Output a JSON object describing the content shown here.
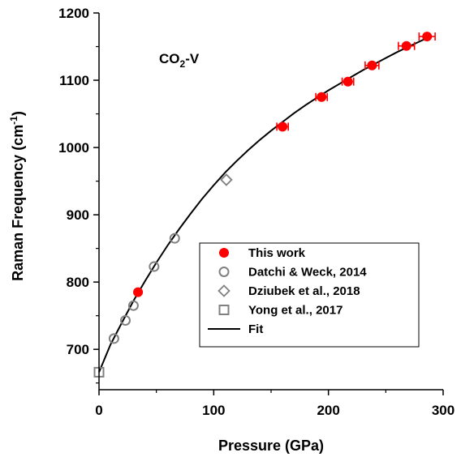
{
  "chart_data": {
    "type": "scatter",
    "xlabel": "Pressure (GPa)",
    "ylabel_main": "Raman Frequency (cm",
    "ylabel_sup": "-1",
    "ylabel_end": ")",
    "xlim": [
      0,
      300
    ],
    "ylim": [
      640,
      1200
    ],
    "xticks": [
      0,
      100,
      200,
      300
    ],
    "yticks": [
      700,
      800,
      900,
      1000,
      1100,
      1200
    ],
    "grid": false,
    "legend_position": "bottom-right",
    "annotation": {
      "main": "CO",
      "sub": "2",
      "end": "-V"
    },
    "series": [
      {
        "name": "This work",
        "marker": "filled-circle",
        "color": "#ff0000",
        "points": [
          {
            "x": 34,
            "y": 785,
            "xerr": 0
          },
          {
            "x": 160,
            "y": 1031,
            "xerr": 5
          },
          {
            "x": 194,
            "y": 1075,
            "xerr": 5
          },
          {
            "x": 217,
            "y": 1098,
            "xerr": 5
          },
          {
            "x": 238,
            "y": 1122,
            "xerr": 6
          },
          {
            "x": 268,
            "y": 1151,
            "xerr": 7
          },
          {
            "x": 286,
            "y": 1165,
            "xerr": 7
          }
        ]
      },
      {
        "name": "Datchi & Weck, 2014",
        "marker": "open-circle",
        "color": "#808080",
        "points": [
          {
            "x": 13,
            "y": 716
          },
          {
            "x": 23,
            "y": 743
          },
          {
            "x": 30,
            "y": 765
          },
          {
            "x": 48,
            "y": 823
          },
          {
            "x": 66,
            "y": 865
          }
        ]
      },
      {
        "name": "Dziubek et al., 2018",
        "marker": "open-diamond",
        "color": "#808080",
        "points": [
          {
            "x": 111,
            "y": 952
          }
        ]
      },
      {
        "name": "Yong et al., 2017",
        "marker": "open-square",
        "color": "#808080",
        "points": [
          {
            "x": 0,
            "y": 666
          }
        ]
      },
      {
        "name": "Fit",
        "marker": "line",
        "color": "#000000",
        "points": [
          {
            "x": 0,
            "y": 666
          },
          {
            "x": 10,
            "y": 707
          },
          {
            "x": 20,
            "y": 740
          },
          {
            "x": 30,
            "y": 772
          },
          {
            "x": 40,
            "y": 801
          },
          {
            "x": 50,
            "y": 829
          },
          {
            "x": 60,
            "y": 855
          },
          {
            "x": 70,
            "y": 879
          },
          {
            "x": 80,
            "y": 902
          },
          {
            "x": 90,
            "y": 924
          },
          {
            "x": 100,
            "y": 944
          },
          {
            "x": 110,
            "y": 963
          },
          {
            "x": 120,
            "y": 980
          },
          {
            "x": 130,
            "y": 996
          },
          {
            "x": 140,
            "y": 1011
          },
          {
            "x": 150,
            "y": 1025
          },
          {
            "x": 160,
            "y": 1038
          },
          {
            "x": 170,
            "y": 1051
          },
          {
            "x": 180,
            "y": 1063
          },
          {
            "x": 190,
            "y": 1074
          },
          {
            "x": 200,
            "y": 1085
          },
          {
            "x": 210,
            "y": 1095
          },
          {
            "x": 220,
            "y": 1105
          },
          {
            "x": 230,
            "y": 1115
          },
          {
            "x": 240,
            "y": 1124
          },
          {
            "x": 250,
            "y": 1133
          },
          {
            "x": 260,
            "y": 1142
          },
          {
            "x": 270,
            "y": 1150
          },
          {
            "x": 280,
            "y": 1158
          },
          {
            "x": 290,
            "y": 1166
          }
        ]
      }
    ]
  }
}
